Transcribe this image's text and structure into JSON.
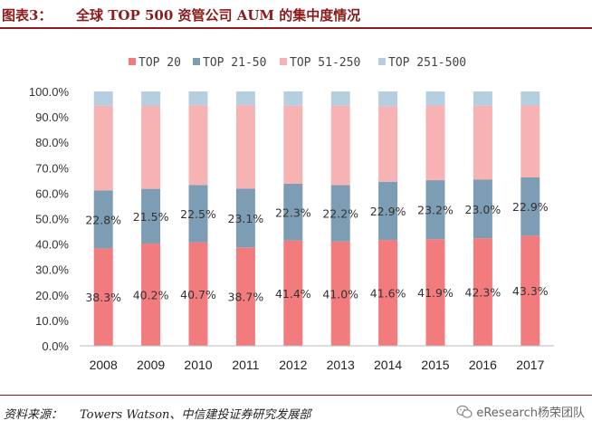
{
  "header": {
    "figure_label": "图表3：",
    "title": "全球 TOP 500 资管公司 AUM 的集中度情况"
  },
  "footer": {
    "source_label": "资料来源：",
    "source_text": "Towers Watson、中信建投证券研究发展部",
    "watermark": "eResearch杨荣团队"
  },
  "chart_data": {
    "type": "bar",
    "stacked": true,
    "categories": [
      "2008",
      "2009",
      "2010",
      "2011",
      "2012",
      "2013",
      "2014",
      "2015",
      "2016",
      "2017"
    ],
    "series": [
      {
        "name": "TOP 20",
        "color": "#f27b7e",
        "values": [
          38.3,
          40.2,
          40.7,
          38.7,
          41.4,
          41.0,
          41.6,
          41.9,
          42.3,
          43.3
        ],
        "labels": [
          "38.3%",
          "40.2%",
          "40.7%",
          "38.7%",
          "41.4%",
          "41.0%",
          "41.6%",
          "41.9%",
          "42.3%",
          "43.3%"
        ]
      },
      {
        "name": "TOP 21-50",
        "color": "#7c9db3",
        "values": [
          22.8,
          21.5,
          22.5,
          23.1,
          22.3,
          22.2,
          22.9,
          23.2,
          23.0,
          22.9
        ],
        "labels": [
          "22.8%",
          "21.5%",
          "22.5%",
          "23.1%",
          "22.3%",
          "22.2%",
          "22.9%",
          "23.2%",
          "23.0%",
          "22.9%"
        ]
      },
      {
        "name": "TOP 51-250",
        "color": "#f7b2b4",
        "values": [
          33.3,
          32.6,
          31.4,
          32.8,
          30.7,
          31.2,
          29.7,
          29.4,
          29.1,
          28.3
        ]
      },
      {
        "name": "TOP 251-500",
        "color": "#b5cfe0",
        "values": [
          5.6,
          5.7,
          5.4,
          5.4,
          5.6,
          5.6,
          5.8,
          5.5,
          5.6,
          5.5
        ]
      }
    ],
    "ylim": [
      0,
      100
    ],
    "yticks": [
      "0.0%",
      "10.0%",
      "20.0%",
      "30.0%",
      "40.0%",
      "50.0%",
      "60.0%",
      "70.0%",
      "80.0%",
      "90.0%",
      "100.0%"
    ],
    "legend_position": "top",
    "grid": false
  }
}
